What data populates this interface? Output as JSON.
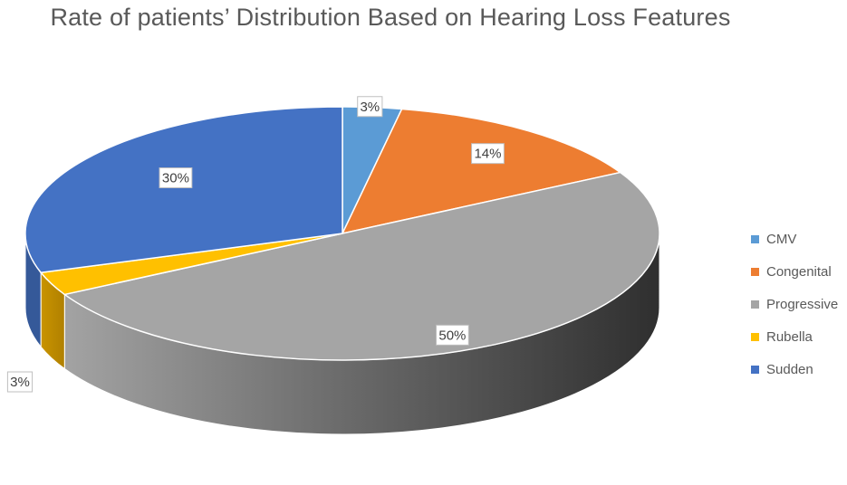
{
  "chart_data": {
    "type": "pie",
    "title": "Rate of patients’ Distribution Based on Hearing Loss Features",
    "categories": [
      "CMV",
      "Congenital",
      "Progressive",
      "Rubella",
      "Sudden"
    ],
    "values": [
      3,
      14,
      50,
      3,
      30
    ],
    "data_labels": [
      "3%",
      "14%",
      "50%",
      "3%",
      "30%"
    ],
    "colors": [
      "#5B9BD5",
      "#ED7D31",
      "#A5A5A5",
      "#FFC000",
      "#4472C4"
    ],
    "style": "3d",
    "legend": "right"
  }
}
